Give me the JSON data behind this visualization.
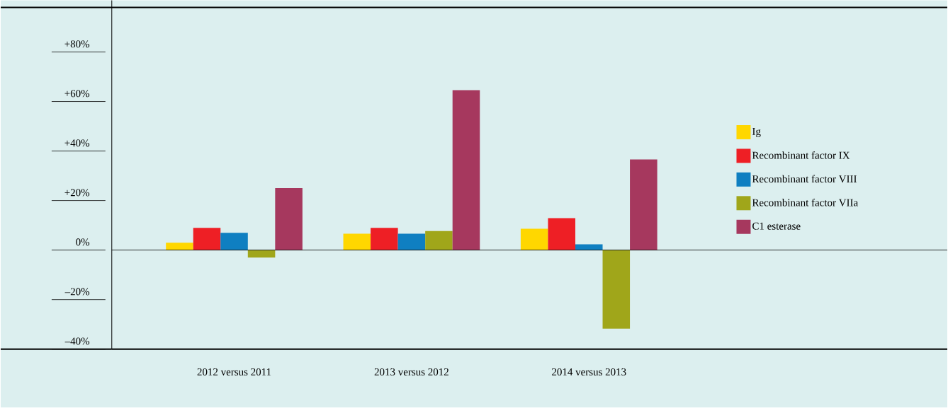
{
  "chart_data": {
    "type": "bar",
    "categories": [
      "2012 versus 2011",
      "2013 versus 2012",
      "2014 versus 2013"
    ],
    "series": [
      {
        "name": "Ig",
        "color": "#ffd700",
        "values": [
          3,
          6.6,
          8.6
        ]
      },
      {
        "name": "Recombinant factor IX",
        "color": "#ee1f25",
        "values": [
          9,
          9,
          12.9
        ]
      },
      {
        "name": "Recombinant factor VIII",
        "color": "#0f7fc1",
        "values": [
          7,
          6.6,
          2.3
        ]
      },
      {
        "name": "Recombinant factor VIIa",
        "color": "#a0a61a",
        "values": [
          -3,
          7.7,
          -31.7
        ]
      },
      {
        "name": "C1 esterase",
        "color": "#a6385e",
        "values": [
          25,
          64.6,
          36.6
        ]
      }
    ],
    "ylim": [
      -40,
      98
    ],
    "yticks": [
      {
        "value": -40,
        "label": "–40%"
      },
      {
        "value": -20,
        "label": "–20%"
      },
      {
        "value": 0,
        "label": "0%"
      },
      {
        "value": 20,
        "label": "+20%"
      },
      {
        "value": 40,
        "label": "+40%"
      },
      {
        "value": 60,
        "label": "+60%"
      },
      {
        "value": 80,
        "label": "+80%"
      }
    ],
    "ref_lines": [
      {
        "axis": "y",
        "value": 0,
        "color": "#000000"
      }
    ],
    "legend": "right"
  }
}
